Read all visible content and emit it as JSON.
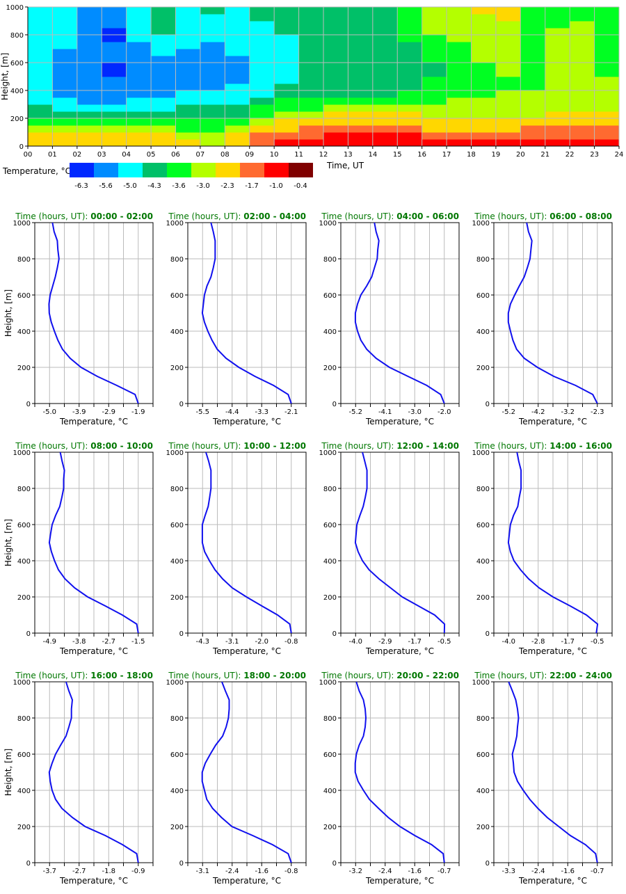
{
  "chart_data": [
    {
      "type": "heatmap",
      "title": "",
      "xlabel": "Time, UT",
      "ylabel": "Height, [m]",
      "xlim": [
        0,
        24
      ],
      "ylim": [
        0,
        1000
      ],
      "x_ticks": [
        "00",
        "01",
        "02",
        "03",
        "04",
        "05",
        "06",
        "07",
        "08",
        "09",
        "10",
        "11",
        "12",
        "13",
        "14",
        "15",
        "16",
        "17",
        "18",
        "19",
        "20",
        "21",
        "22",
        "23",
        "24"
      ],
      "y_ticks": [
        "0",
        "200",
        "400",
        "600",
        "800",
        "1000"
      ],
      "grid": true,
      "colorbar": {
        "label": "Temperature, °C",
        "levels": [
          "-6.3",
          "-5.6",
          "-5.0",
          "-4.3",
          "-3.6",
          "-3.0",
          "-2.3",
          "-1.7",
          "-1.0",
          "-0.4"
        ],
        "colors": [
          "#0028ff",
          "#008cff",
          "#00ffff",
          "#00c068",
          "#00ff22",
          "#b4ff00",
          "#ffd700",
          "#ff6a30",
          "#ff0000",
          "#800000"
        ]
      },
      "cell_height_m": 50,
      "columns_hourly_class_index_bottom_to_top": [
        "66543322222222222222",
        "66543221111111222222",
        "66543211111111111111",
        "66543211110011100111",
        "66543221111111122222",
        "66543221111112223333",
        "65443322111111222222",
        "55443322111111122223",
        "66543322211112222222",
        "77654432222222222233",
        "87665443322222223333",
        "87765443333333333333",
        "88766543333333333333",
        "88766543333333333333",
        "88766543333333333333",
        "88766544333333344444",
        "87665544443344445555",
        "87665554444444455555",
        "87665554444455555556",
        "87665555445555555566",
        "87765555444444444444",
        "87766555555555555444",
        "87766555555555555544",
        "87766555554444444444"
      ]
    },
    {
      "type": "line",
      "panel_title_prefix": "Time (hours, UT): ",
      "xlabel": "Temperature, °C",
      "ylabel": "Height, [m]",
      "y_ticks": [
        "0",
        "200",
        "400",
        "600",
        "800",
        "1000"
      ],
      "ylim": [
        0,
        1000
      ],
      "heights": [
        0,
        50,
        100,
        150,
        200,
        250,
        300,
        350,
        400,
        450,
        500,
        550,
        600,
        650,
        700,
        750,
        800,
        850,
        900,
        950,
        1000
      ],
      "series_color": "#1010ee",
      "panels": [
        {
          "range": "00:00 - 02:00",
          "x_ticks": [
            "-5.0",
            "-3.9",
            "-2.9",
            "-1.9"
          ],
          "tick_values": [
            -5.0,
            -1.9
          ],
          "values": [
            -1.9,
            -2.01,
            -2.65,
            -3.33,
            -3.9,
            -4.28,
            -4.55,
            -4.71,
            -4.83,
            -4.94,
            -5.01,
            -5.02,
            -4.98,
            -4.89,
            -4.8,
            -4.73,
            -4.67,
            -4.71,
            -4.73,
            -4.84,
            -4.9
          ]
        },
        {
          "range": "02:00 - 04:00",
          "x_ticks": [
            "-5.5",
            "-4.4",
            "-3.3",
            "-2.1"
          ],
          "tick_values": [
            -5.5,
            -2.1
          ],
          "values": [
            -2.1,
            -2.22,
            -2.78,
            -3.49,
            -4.11,
            -4.6,
            -4.94,
            -5.14,
            -5.3,
            -5.43,
            -5.51,
            -5.47,
            -5.43,
            -5.33,
            -5.18,
            -5.09,
            -5.02,
            -5.02,
            -5.02,
            -5.09,
            -5.18
          ]
        },
        {
          "range": "04:00 - 06:00",
          "x_ticks": [
            "-5.2",
            "-4.1",
            "-3.0",
            "-2.0"
          ],
          "tick_values": [
            -5.2,
            -2.0
          ],
          "values": [
            -2.0,
            -2.13,
            -2.63,
            -3.31,
            -3.98,
            -4.46,
            -4.8,
            -5.01,
            -5.13,
            -5.21,
            -5.21,
            -5.13,
            -5.01,
            -4.8,
            -4.62,
            -4.52,
            -4.42,
            -4.4,
            -4.36,
            -4.46,
            -4.52
          ]
        },
        {
          "range": "06:00 - 08:00",
          "x_ticks": [
            "-5.2",
            "-4.2",
            "-3.2",
            "-2.3"
          ],
          "tick_values": [
            -5.2,
            -2.3
          ],
          "values": [
            -2.3,
            -2.45,
            -3.01,
            -3.72,
            -4.26,
            -4.69,
            -4.94,
            -5.06,
            -5.14,
            -5.21,
            -5.21,
            -5.14,
            -5.0,
            -4.85,
            -4.69,
            -4.59,
            -4.5,
            -4.47,
            -4.44,
            -4.55,
            -4.61
          ]
        },
        {
          "range": "08:00 - 10:00",
          "x_ticks": [
            "-4.9",
            "-3.8",
            "-2.7",
            "-1.5"
          ],
          "tick_values": [
            -4.9,
            -1.5
          ],
          "values": [
            -1.5,
            -1.56,
            -2.11,
            -2.76,
            -3.44,
            -3.94,
            -4.31,
            -4.56,
            -4.71,
            -4.83,
            -4.91,
            -4.86,
            -4.8,
            -4.67,
            -4.51,
            -4.43,
            -4.36,
            -4.36,
            -4.33,
            -4.42,
            -4.49
          ]
        },
        {
          "range": "10:00 - 12:00",
          "x_ticks": [
            "-4.3",
            "-3.1",
            "-2.0",
            "-0.8"
          ],
          "tick_values": [
            -4.3,
            -0.8
          ],
          "values": [
            -0.8,
            -0.86,
            -1.34,
            -1.96,
            -2.57,
            -3.13,
            -3.51,
            -3.81,
            -4.03,
            -4.22,
            -4.31,
            -4.31,
            -4.31,
            -4.2,
            -4.08,
            -4.02,
            -3.97,
            -3.97,
            -3.97,
            -4.06,
            -4.17
          ]
        },
        {
          "range": "12:00 - 14:00",
          "x_ticks": [
            "-4.0",
            "-2.9",
            "-1.7",
            "-0.5"
          ],
          "tick_values": [
            -4.0,
            -0.5
          ],
          "values": [
            -0.5,
            -0.49,
            -0.88,
            -1.52,
            -2.16,
            -2.62,
            -3.08,
            -3.47,
            -3.73,
            -3.9,
            -4.01,
            -3.98,
            -3.95,
            -3.83,
            -3.7,
            -3.62,
            -3.55,
            -3.55,
            -3.55,
            -3.64,
            -3.73
          ]
        },
        {
          "range": "14:00 - 16:00",
          "x_ticks": [
            "-4.0",
            "-2.8",
            "-1.7",
            "-0.5"
          ],
          "tick_values": [
            -4.0,
            -0.5
          ],
          "values": [
            -0.54,
            -0.49,
            -0.93,
            -1.57,
            -2.25,
            -2.8,
            -3.21,
            -3.53,
            -3.79,
            -3.93,
            -4.01,
            -3.97,
            -3.93,
            -3.81,
            -3.64,
            -3.58,
            -3.51,
            -3.51,
            -3.51,
            -3.6,
            -3.67
          ]
        },
        {
          "range": "16:00 - 18:00",
          "x_ticks": [
            "-3.7",
            "-2.7",
            "-1.8",
            "-0.9"
          ],
          "tick_values": [
            -3.7,
            -0.9
          ],
          "values": [
            -0.9,
            -0.95,
            -1.4,
            -1.94,
            -2.58,
            -2.98,
            -3.31,
            -3.51,
            -3.62,
            -3.68,
            -3.71,
            -3.62,
            -3.51,
            -3.35,
            -3.18,
            -3.09,
            -3.01,
            -3.01,
            -2.98,
            -3.09,
            -3.18
          ]
        },
        {
          "range": "18:00 - 20:00",
          "x_ticks": [
            "-3.1",
            "-2.4",
            "-1.6",
            "-0.8"
          ],
          "tick_values": [
            -3.1,
            -0.8
          ],
          "values": [
            -0.8,
            -0.88,
            -1.29,
            -1.8,
            -2.34,
            -2.61,
            -2.84,
            -2.99,
            -3.05,
            -3.11,
            -3.11,
            -3.03,
            -2.9,
            -2.76,
            -2.58,
            -2.49,
            -2.43,
            -2.41,
            -2.41,
            -2.51,
            -2.6
          ]
        },
        {
          "range": "20:00 - 22:00",
          "x_ticks": [
            "-3.2",
            "-2.4",
            "-1.6",
            "-0.7"
          ],
          "tick_values": [
            -3.2,
            -0.7
          ],
          "values": [
            -0.7,
            -0.73,
            -1.06,
            -1.53,
            -1.95,
            -2.28,
            -2.55,
            -2.81,
            -2.98,
            -3.13,
            -3.21,
            -3.21,
            -3.18,
            -3.1,
            -2.98,
            -2.93,
            -2.91,
            -2.93,
            -2.98,
            -3.1,
            -3.18
          ]
        },
        {
          "range": "22:00 - 24:00",
          "x_ticks": [
            "-3.3",
            "-2.4",
            "-1.6",
            "-0.7"
          ],
          "tick_values": [
            -3.3,
            -0.7
          ],
          "values": [
            -0.7,
            -0.75,
            -1.05,
            -1.49,
            -1.83,
            -2.17,
            -2.44,
            -2.68,
            -2.87,
            -3.04,
            -3.14,
            -3.16,
            -3.19,
            -3.12,
            -3.06,
            -3.04,
            -3.01,
            -3.04,
            -3.09,
            -3.19,
            -3.3
          ]
        }
      ]
    }
  ]
}
